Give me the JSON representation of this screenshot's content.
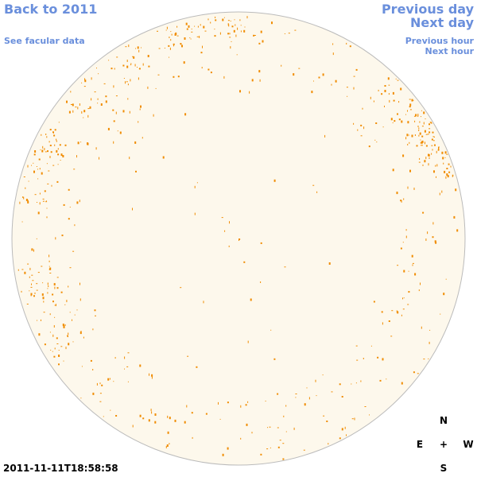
{
  "navigation": {
    "back": "Back to 2011",
    "facular": "See facular data",
    "previous_day": "Previous day",
    "next_day": "Next day",
    "previous_hour": "Previous hour",
    "next_hour": "Next hour"
  },
  "timestamp": "2011-11-11T18:58:58",
  "compass": {
    "north": "N",
    "east": "E",
    "center": "+",
    "west": "W",
    "south": "S"
  }
}
